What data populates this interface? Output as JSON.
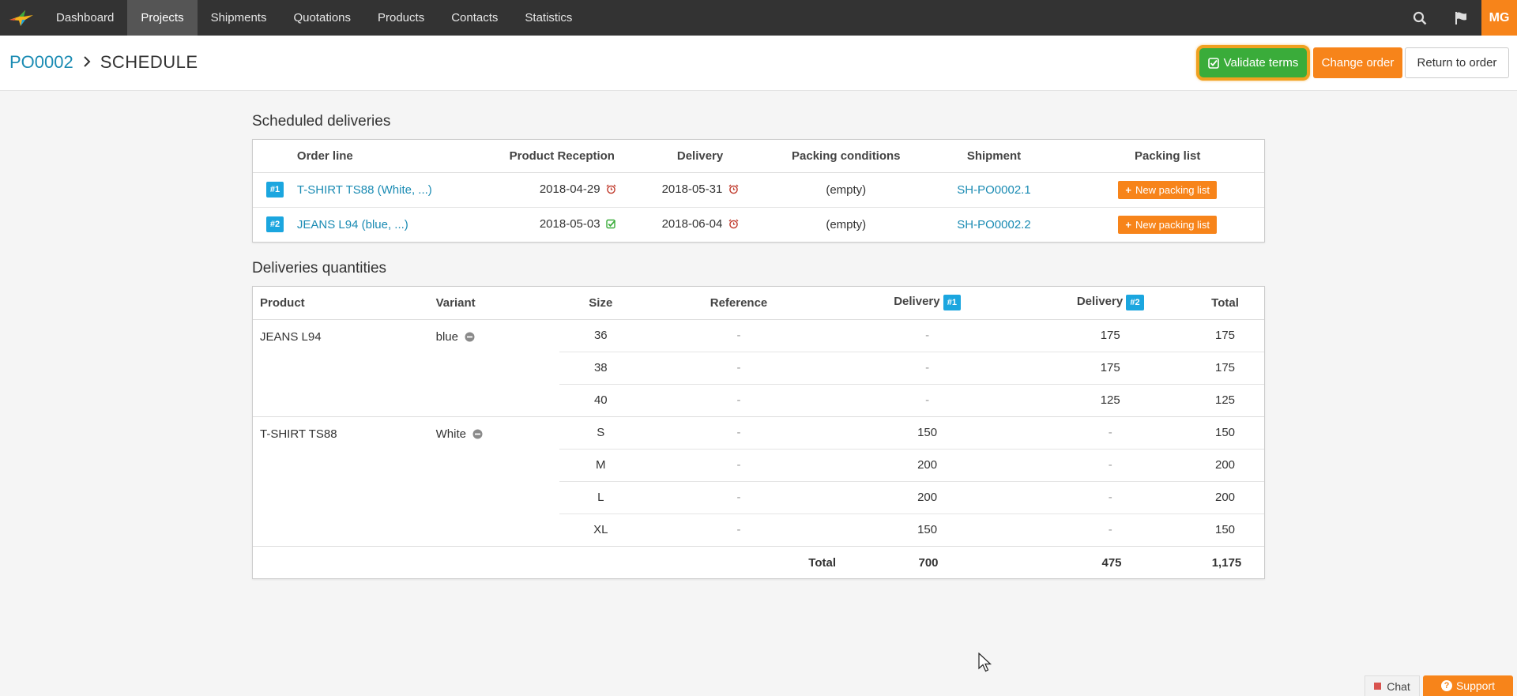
{
  "nav": {
    "items": [
      {
        "label": "Dashboard"
      },
      {
        "label": "Projects"
      },
      {
        "label": "Shipments"
      },
      {
        "label": "Quotations"
      },
      {
        "label": "Products"
      },
      {
        "label": "Contacts"
      },
      {
        "label": "Statistics"
      }
    ],
    "active_index": 1,
    "avatar_initials": "MG"
  },
  "header": {
    "breadcrumb_link": "PO0002",
    "breadcrumb_current": "SCHEDULE",
    "validate_label": "Validate terms",
    "change_label": "Change order",
    "return_label": "Return to order"
  },
  "scheduled": {
    "title": "Scheduled deliveries",
    "columns": [
      "Order line",
      "Product Reception",
      "Delivery",
      "Packing conditions",
      "Shipment",
      "Packing list"
    ],
    "rows": [
      {
        "badge": "#1",
        "order_line": "T-SHIRT TS88 (White, ...)",
        "reception": "2018-04-29",
        "reception_status": "alarm",
        "delivery": "2018-05-31",
        "delivery_status": "alarm",
        "packing": "(empty)",
        "shipment": "SH-PO0002.1",
        "packing_list": "New packing list"
      },
      {
        "badge": "#2",
        "order_line": "JEANS L94 (blue, ...)",
        "reception": "2018-05-03",
        "reception_status": "check",
        "delivery": "2018-06-04",
        "delivery_status": "alarm",
        "packing": "(empty)",
        "shipment": "SH-PO0002.2",
        "packing_list": "New packing list"
      }
    ]
  },
  "quantities": {
    "title": "Deliveries quantities",
    "columns": {
      "product": "Product",
      "variant": "Variant",
      "size": "Size",
      "reference": "Reference",
      "delivery": "Delivery",
      "delivery1_badge": "#1",
      "delivery2_badge": "#2",
      "total": "Total"
    },
    "groups": [
      {
        "product": "JEANS L94",
        "variant": "blue",
        "rows": [
          {
            "size": "36",
            "reference": "-",
            "d1": "-",
            "d2": "175",
            "total": "175"
          },
          {
            "size": "38",
            "reference": "-",
            "d1": "-",
            "d2": "175",
            "total": "175"
          },
          {
            "size": "40",
            "reference": "-",
            "d1": "-",
            "d2": "125",
            "total": "125"
          }
        ]
      },
      {
        "product": "T-SHIRT TS88",
        "variant": "White",
        "rows": [
          {
            "size": "S",
            "reference": "-",
            "d1": "150",
            "d2": "-",
            "total": "150"
          },
          {
            "size": "M",
            "reference": "-",
            "d1": "200",
            "d2": "-",
            "total": "200"
          },
          {
            "size": "L",
            "reference": "-",
            "d1": "200",
            "d2": "-",
            "total": "200"
          },
          {
            "size": "XL",
            "reference": "-",
            "d1": "150",
            "d2": "-",
            "total": "150"
          }
        ]
      }
    ],
    "totals": {
      "label": "Total",
      "d1": "700",
      "d2": "475",
      "total": "1,175"
    }
  },
  "footer": {
    "chat_label": "Chat",
    "support_label": "Support"
  },
  "colors": {
    "nav_bg": "#333333",
    "accent_orange": "#f7841a",
    "validate_green": "#3aac3a",
    "highlight_ring": "#f0a120",
    "link_blue": "#1a8bb3",
    "badge_blue": "#1ba6df"
  }
}
